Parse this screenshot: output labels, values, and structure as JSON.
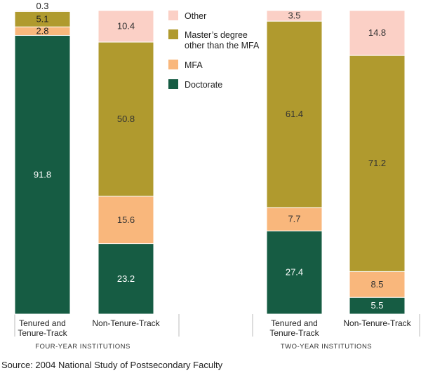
{
  "colors": {
    "Doctorate": "#165c43",
    "MFA": "#f9b77c",
    "Master's degree other than the MFA": "#b09a2e",
    "Other": "#fbd0c6"
  },
  "chart_data": {
    "type": "bar",
    "stacked": true,
    "ylim": [
      0,
      100
    ],
    "grid": false,
    "legend_position": "top-center",
    "source": "Source: 2004 National Study of Postsecondary Faculty",
    "legend": [
      {
        "name": "Other"
      },
      {
        "name": "Master's degree other than the MFA"
      },
      {
        "name": "MFA"
      },
      {
        "name": "Doctorate"
      }
    ],
    "groups": [
      {
        "label": "FOUR-YEAR INSTITUTIONS",
        "bars": [
          {
            "label": [
              "Tenured and",
              "Tenure-Track"
            ],
            "values": {
              "Doctorate": 91.8,
              "MFA": 2.8,
              "Master's degree other than the MFA": 5.1,
              "Other": 0.3
            }
          },
          {
            "label": [
              "Non-Tenure-Track"
            ],
            "values": {
              "Doctorate": 23.2,
              "MFA": 15.6,
              "Master's degree other than the MFA": 50.8,
              "Other": 10.4
            }
          }
        ]
      },
      {
        "label": "TWO-YEAR INSTITUTIONS",
        "bars": [
          {
            "label": [
              "Tenured and",
              "Tenure-Track"
            ],
            "values": {
              "Doctorate": 27.4,
              "MFA": 7.7,
              "Master's degree other than the MFA": 61.4,
              "Other": 3.5
            }
          },
          {
            "label": [
              "Non-Tenure-Track"
            ],
            "values": {
              "Doctorate": 5.5,
              "MFA": 8.5,
              "Master's degree other than the MFA": 71.2,
              "Other": 14.8
            }
          }
        ]
      }
    ]
  }
}
